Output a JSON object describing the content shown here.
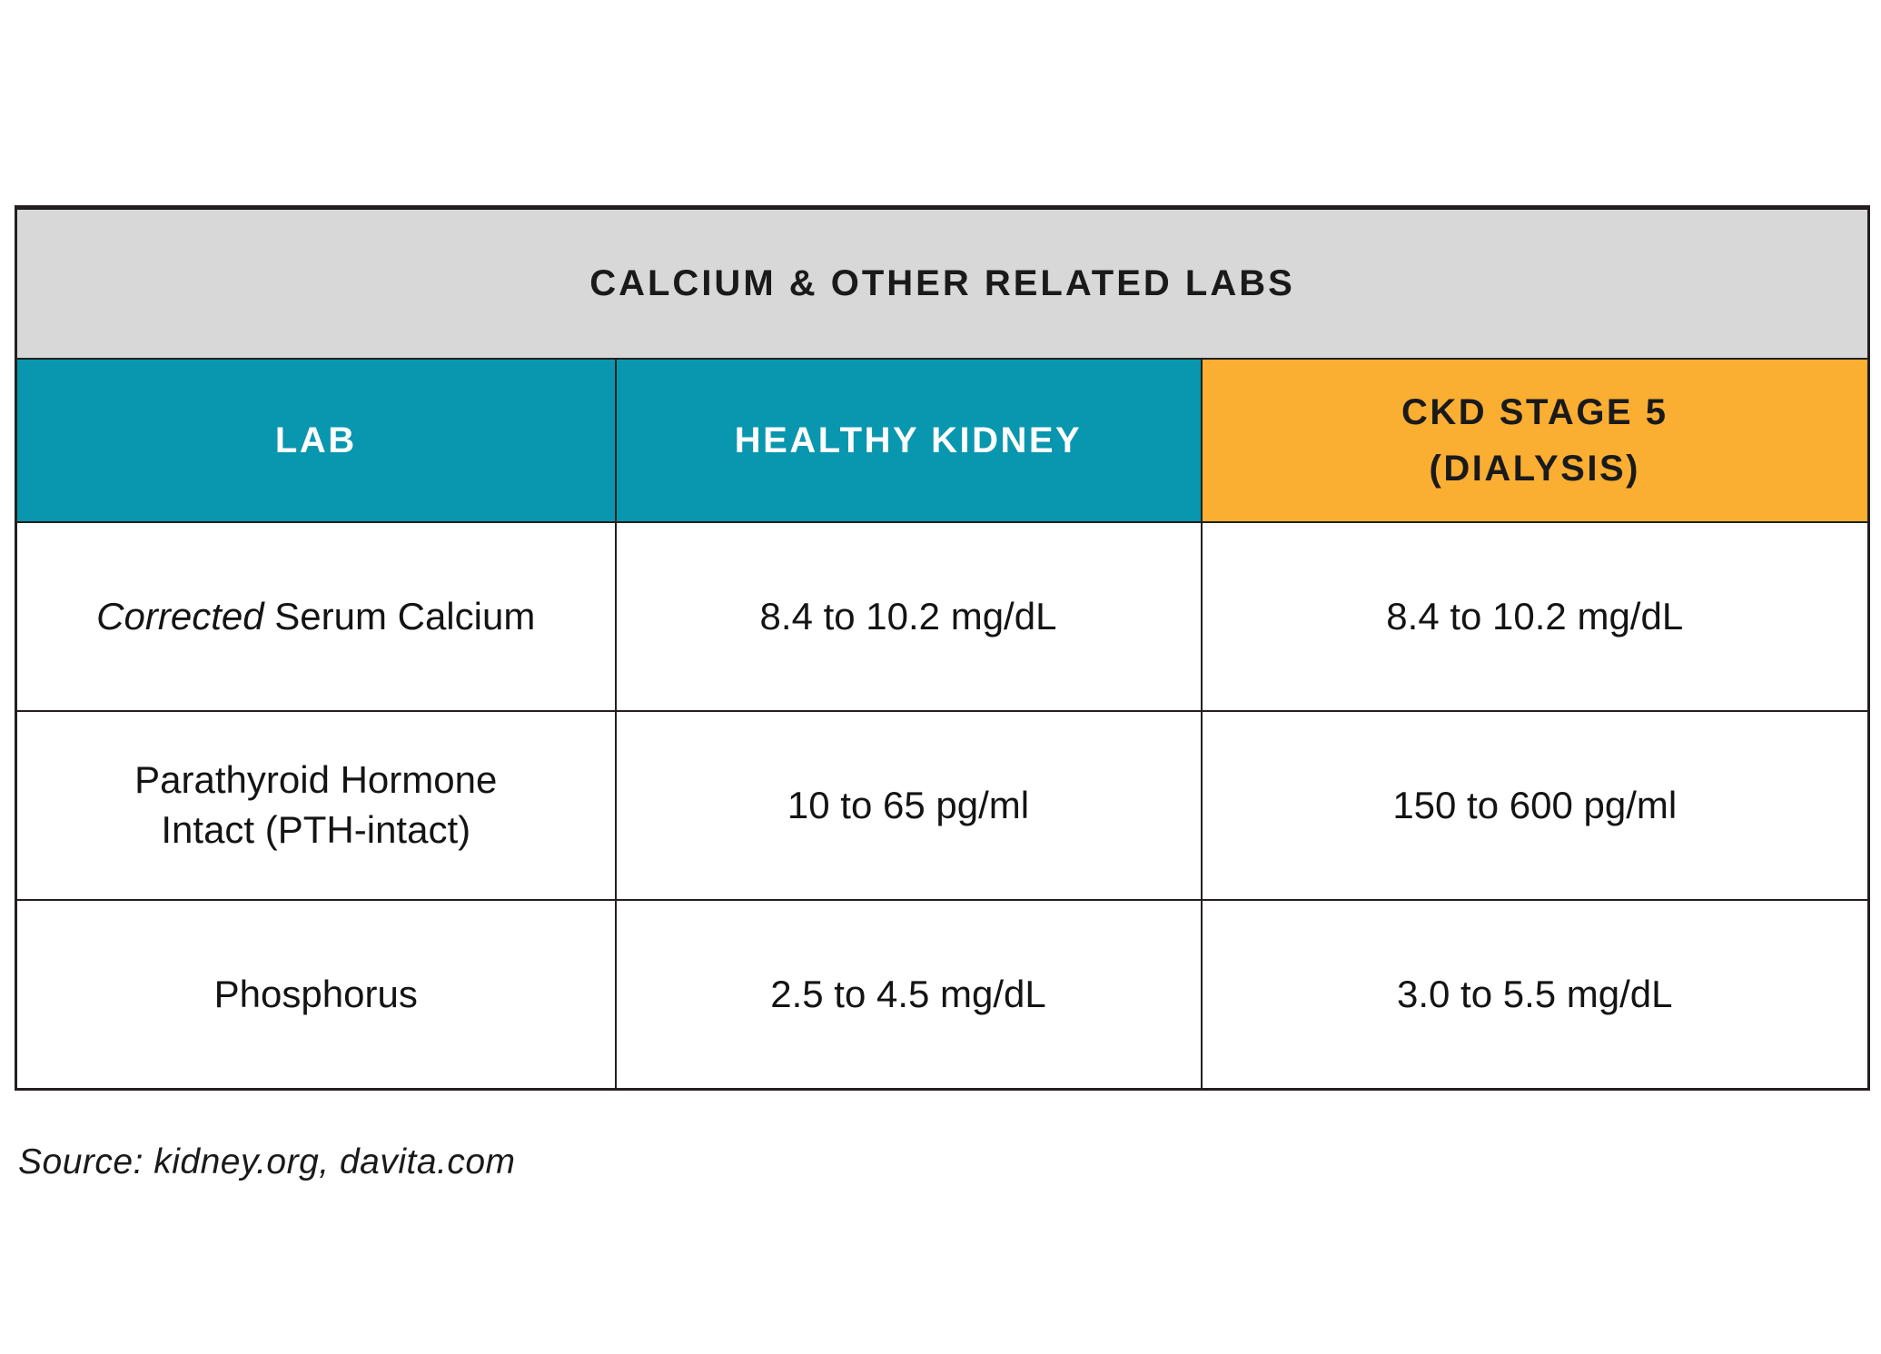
{
  "colors": {
    "teal_header": "#0996af",
    "orange_header": "#faae32",
    "title_band_gray": "#d8d8d8",
    "border": "#231f20"
  },
  "table": {
    "title": "CALCIUM & OTHER RELATED LABS",
    "headers": {
      "lab": "LAB",
      "healthy": "HEALTHY KIDNEY",
      "ckd": "CKD STAGE 5\n(DIALYSIS)"
    },
    "rows": [
      {
        "lab_em": "Corrected",
        "lab_rest": " Serum Calcium",
        "healthy": "8.4 to 10.2 mg/dL",
        "ckd": "8.4 to 10.2 mg/dL"
      },
      {
        "lab": "Parathyroid Hormone\nIntact (PTH-intact)",
        "healthy": "10 to 65 pg/ml",
        "ckd": "150 to 600 pg/ml"
      },
      {
        "lab": "Phosphorus",
        "healthy": "2.5 to 4.5 mg/dL",
        "ckd": "3.0 to 5.5 mg/dL"
      }
    ]
  },
  "source": "Source: kidney.org, davita.com",
  "chart_data": {
    "type": "table",
    "title": "CALCIUM & OTHER RELATED LABS",
    "columns": [
      "LAB",
      "HEALTHY KIDNEY",
      "CKD STAGE 5 (DIALYSIS)"
    ],
    "rows": [
      [
        "Corrected Serum Calcium",
        "8.4 to 10.2 mg/dL",
        "8.4 to 10.2 mg/dL"
      ],
      [
        "Parathyroid Hormone Intact (PTH-intact)",
        "10 to 65 pg/ml",
        "150 to 600 pg/ml"
      ],
      [
        "Phosphorus",
        "2.5 to 4.5 mg/dL",
        "3.0 to 5.5 mg/dL"
      ]
    ],
    "source": "Source: kidney.org, davita.com"
  }
}
